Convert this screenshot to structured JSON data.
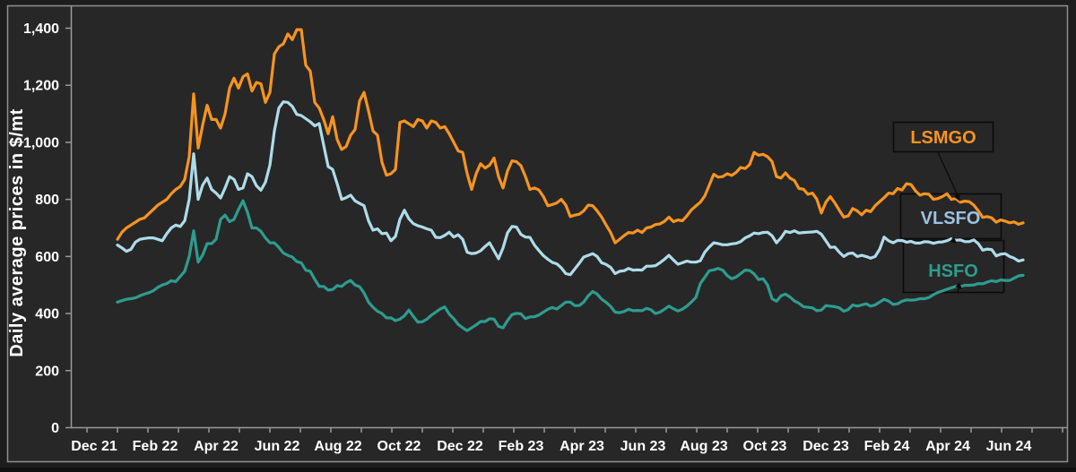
{
  "figure": {
    "background": "#1d1d1d",
    "panel_background": "#272727",
    "frame_color": "#8f8f8f",
    "axis_color": "#9a9a9a",
    "text_color": "#ffffff"
  },
  "chart_data": {
    "type": "line",
    "title": "",
    "xlabel": "",
    "ylabel": "Daily average prices in $/mt",
    "ylim": [
      0,
      1400
    ],
    "grid": false,
    "legend_position": "callout-boxes-right",
    "x_range": "late Dec 2021 to mid Jun 2024, evenly spaced samples of daily prices",
    "y_tick_values": [
      0,
      200,
      400,
      600,
      800,
      1000,
      1200,
      1400
    ],
    "y_tick_labels": [
      "0",
      "200",
      "400",
      "600",
      "800",
      "1,000",
      "1,200",
      "1,400"
    ],
    "x_tick_labels": [
      "Dec 21",
      "Feb 22",
      "Apr 22",
      "Jun 22",
      "Aug 22",
      "Oct 22",
      "Dec 22",
      "Feb 23",
      "Apr 23",
      "Jun 23",
      "Aug 23",
      "Oct 23",
      "Dec 23",
      "Feb 24",
      "Apr 24",
      "Jun 24"
    ],
    "series": [
      {
        "name": "LSMGO",
        "color": "#f7941e",
        "label_color": "#f7941e",
        "values": [
          660,
          685,
          700,
          710,
          720,
          730,
          735,
          750,
          765,
          780,
          790,
          800,
          820,
          835,
          845,
          870,
          950,
          1170,
          980,
          1060,
          1130,
          1080,
          1080,
          1050,
          1100,
          1190,
          1225,
          1190,
          1230,
          1240,
          1180,
          1210,
          1205,
          1140,
          1175,
          1310,
          1335,
          1345,
          1380,
          1360,
          1395,
          1395,
          1270,
          1250,
          1140,
          1120,
          1080,
          1030,
          1090,
          1010,
          975,
          985,
          1025,
          1045,
          1145,
          1175,
          1110,
          1040,
          1025,
          930,
          885,
          890,
          905,
          1070,
          1075,
          1065,
          1055,
          1080,
          1075,
          1050,
          1075,
          1070,
          1050,
          1055,
          1030,
          1000,
          970,
          965,
          890,
          835,
          890,
          925,
          910,
          920,
          945,
          880,
          840,
          900,
          935,
          932,
          918,
          880,
          835,
          840,
          833,
          810,
          778,
          782,
          788,
          800,
          780,
          740,
          745,
          748,
          760,
          780,
          778,
          760,
          738,
          710,
          684,
          648,
          660,
          673,
          684,
          682,
          692,
          684,
          700,
          703,
          712,
          714,
          723,
          738,
          722,
          728,
          725,
          742,
          763,
          777,
          790,
          812,
          850,
          888,
          878,
          880,
          890,
          884,
          895,
          912,
          908,
          922,
          965,
          955,
          958,
          950,
          933,
          880,
          875,
          893,
          875,
          866,
          838,
          836,
          818,
          822,
          800,
          752,
          790,
          810,
          788,
          762,
          738,
          742,
          768,
          760,
          746,
          762,
          757,
          778,
          792,
          806,
          822,
          820,
          838,
          833,
          855,
          852,
          830,
          815,
          820,
          818,
          800,
          803,
          810,
          820,
          800,
          803,
          790,
          794,
          792,
          780,
          760,
          737,
          740,
          735,
          720,
          728,
          724,
          718,
          721,
          713,
          718
        ]
      },
      {
        "name": "VLSFO",
        "color": "#aedce9",
        "label_color": "#9cc2e5",
        "values": [
          640,
          630,
          618,
          625,
          650,
          660,
          663,
          665,
          665,
          660,
          655,
          680,
          700,
          710,
          705,
          725,
          800,
          960,
          800,
          850,
          875,
          835,
          822,
          805,
          840,
          880,
          870,
          835,
          840,
          890,
          880,
          848,
          832,
          860,
          920,
          1040,
          1120,
          1142,
          1140,
          1126,
          1098,
          1094,
          1083,
          1072,
          1058,
          1066,
          990,
          915,
          905,
          855,
          800,
          806,
          815,
          795,
          786,
          778,
          725,
          692,
          697,
          680,
          682,
          655,
          670,
          730,
          762,
          732,
          715,
          708,
          703,
          697,
          692,
          667,
          666,
          674,
          685,
          668,
          676,
          660,
          615,
          610,
          612,
          620,
          635,
          648,
          620,
          592,
          630,
          683,
          705,
          703,
          677,
          668,
          667,
          640,
          621,
          603,
          590,
          579,
          574,
          560,
          540,
          536,
          556,
          576,
          598,
          604,
          610,
          600,
          578,
          572,
          562,
          540,
          548,
          550,
          558,
          552,
          553,
          552,
          566,
          566,
          568,
          578,
          590,
          604,
          588,
          573,
          578,
          584,
          580,
          580,
          585,
          615,
          633,
          648,
          645,
          641,
          641,
          644,
          646,
          652,
          665,
          672,
          682,
          680,
          684,
          685,
          673,
          648,
          665,
          688,
          684,
          690,
          682,
          684,
          685,
          686,
          688,
          678,
          655,
          632,
          633,
          615,
          600,
          610,
          612,
          600,
          604,
          600,
          594,
          600,
          625,
          668,
          655,
          648,
          656,
          656,
          650,
          653,
          647,
          647,
          652,
          651,
          646,
          650,
          651,
          655,
          662,
          657,
          658,
          652,
          652,
          658,
          645,
          622,
          626,
          624,
          602,
          608,
          610,
          600,
          594,
          584,
          588
        ]
      },
      {
        "name": "HSFO",
        "color": "#2e9c8e",
        "label_color": "#2e9c8e",
        "values": [
          440,
          445,
          450,
          452,
          455,
          462,
          468,
          473,
          480,
          492,
          500,
          505,
          515,
          512,
          530,
          548,
          600,
          690,
          580,
          605,
          645,
          645,
          660,
          730,
          745,
          722,
          730,
          765,
          795,
          755,
          700,
          700,
          688,
          665,
          648,
          648,
          632,
          612,
          604,
          598,
          582,
          578,
          552,
          548,
          520,
          495,
          495,
          482,
          484,
          498,
          495,
          508,
          516,
          500,
          494,
          472,
          440,
          422,
          408,
          400,
          385,
          385,
          375,
          380,
          392,
          412,
          390,
          370,
          371,
          380,
          394,
          405,
          416,
          423,
          398,
          382,
          362,
          350,
          340,
          350,
          360,
          372,
          372,
          382,
          380,
          355,
          350,
          375,
          396,
          401,
          399,
          382,
          388,
          389,
          395,
          405,
          415,
          421,
          416,
          428,
          440,
          440,
          428,
          428,
          440,
          462,
          477,
          468,
          450,
          439,
          425,
          405,
          403,
          407,
          415,
          410,
          411,
          410,
          418,
          413,
          400,
          405,
          415,
          426,
          417,
          409,
          415,
          426,
          440,
          456,
          505,
          527,
          550,
          553,
          558,
          552,
          533,
          522,
          528,
          540,
          552,
          551,
          539,
          519,
          522,
          500,
          452,
          443,
          462,
          468,
          458,
          444,
          436,
          424,
          422,
          420,
          410,
          412,
          428,
          426,
          424,
          420,
          408,
          414,
          430,
          426,
          430,
          434,
          426,
          430,
          440,
          450,
          444,
          432,
          434,
          443,
          448,
          447,
          448,
          452,
          452,
          456,
          466,
          474,
          479,
          485,
          490,
          495,
          494,
          499,
          499,
          500,
          505,
          504,
          510,
          515,
          512,
          518,
          516,
          516,
          524,
          532,
          534
        ]
      }
    ]
  }
}
